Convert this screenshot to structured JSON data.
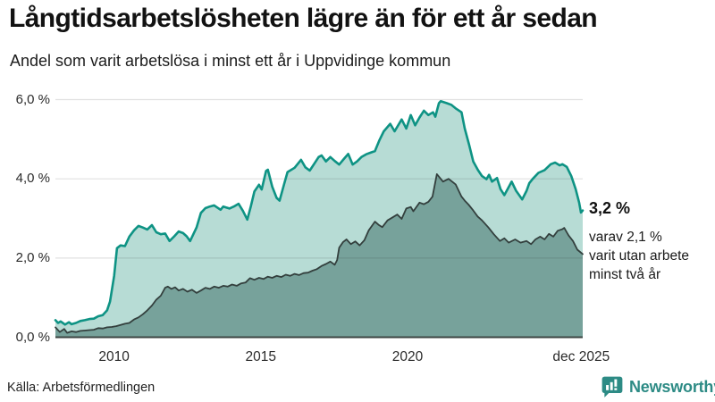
{
  "header": {
    "title": "Långtidsarbetslösheten lägre än för ett år sedan",
    "subtitle": "Andel som varit arbetslösa i minst ett år i Uppvidinge kommun"
  },
  "chart_data": {
    "type": "area",
    "title": "Långtidsarbetslösheten lägre än för ett år sedan",
    "x_unit": "decimal year, monthly series jan 2008 - dec 2025",
    "y_unit": "percent",
    "xlim": [
      2008.0,
      2026.1
    ],
    "ylim": [
      0,
      6.35
    ],
    "grid": "horizontal",
    "legend_position": "none",
    "yticks": [
      {
        "v": 0,
        "label": "0,0 %"
      },
      {
        "v": 2,
        "label": "2,0 %"
      },
      {
        "v": 4,
        "label": "4,0 %"
      },
      {
        "v": 6,
        "label": "6,0 %"
      }
    ],
    "xticks": [
      {
        "t": 2010.0,
        "label": "2010"
      },
      {
        "t": 2015.0,
        "label": "2015"
      },
      {
        "t": 2020.0,
        "label": "2020"
      },
      {
        "t": 2025.92,
        "label": "dec 2025"
      }
    ],
    "series": [
      {
        "name": "Andel som varit arbetslösa i minst ett år",
        "line_color": "#0e9384",
        "fill_color": "#b7dcd5",
        "end_value": 3.2,
        "points": [
          [
            2008.0,
            0.43
          ],
          [
            2008.09,
            0.36
          ],
          [
            2008.18,
            0.4
          ],
          [
            2008.33,
            0.32
          ],
          [
            2008.46,
            0.38
          ],
          [
            2008.55,
            0.33
          ],
          [
            2008.7,
            0.36
          ],
          [
            2008.85,
            0.41
          ],
          [
            2009.0,
            0.43
          ],
          [
            2009.16,
            0.46
          ],
          [
            2009.31,
            0.47
          ],
          [
            2009.46,
            0.53
          ],
          [
            2009.61,
            0.56
          ],
          [
            2009.76,
            0.68
          ],
          [
            2009.86,
            0.9
          ],
          [
            2010.0,
            1.55
          ],
          [
            2010.1,
            2.25
          ],
          [
            2010.22,
            2.32
          ],
          [
            2010.37,
            2.3
          ],
          [
            2010.52,
            2.54
          ],
          [
            2010.68,
            2.7
          ],
          [
            2010.83,
            2.81
          ],
          [
            2010.98,
            2.77
          ],
          [
            2011.13,
            2.72
          ],
          [
            2011.29,
            2.83
          ],
          [
            2011.44,
            2.65
          ],
          [
            2011.59,
            2.6
          ],
          [
            2011.74,
            2.62
          ],
          [
            2011.89,
            2.43
          ],
          [
            2012.05,
            2.55
          ],
          [
            2012.2,
            2.67
          ],
          [
            2012.35,
            2.63
          ],
          [
            2012.47,
            2.55
          ],
          [
            2012.59,
            2.43
          ],
          [
            2012.81,
            2.77
          ],
          [
            2012.96,
            3.14
          ],
          [
            2013.11,
            3.26
          ],
          [
            2013.26,
            3.3
          ],
          [
            2013.41,
            3.33
          ],
          [
            2013.63,
            3.22
          ],
          [
            2013.72,
            3.3
          ],
          [
            2013.93,
            3.25
          ],
          [
            2014.08,
            3.3
          ],
          [
            2014.24,
            3.37
          ],
          [
            2014.39,
            3.19
          ],
          [
            2014.54,
            2.97
          ],
          [
            2014.66,
            3.3
          ],
          [
            2014.78,
            3.68
          ],
          [
            2014.94,
            3.85
          ],
          [
            2015.03,
            3.73
          ],
          [
            2015.18,
            4.2
          ],
          [
            2015.24,
            4.23
          ],
          [
            2015.39,
            3.8
          ],
          [
            2015.54,
            3.52
          ],
          [
            2015.64,
            3.45
          ],
          [
            2015.79,
            3.85
          ],
          [
            2015.91,
            4.17
          ],
          [
            2016.15,
            4.28
          ],
          [
            2016.37,
            4.48
          ],
          [
            2016.52,
            4.29
          ],
          [
            2016.67,
            4.21
          ],
          [
            2016.82,
            4.38
          ],
          [
            2016.97,
            4.55
          ],
          [
            2017.07,
            4.59
          ],
          [
            2017.22,
            4.44
          ],
          [
            2017.37,
            4.55
          ],
          [
            2017.52,
            4.45
          ],
          [
            2017.67,
            4.36
          ],
          [
            2017.83,
            4.5
          ],
          [
            2017.98,
            4.63
          ],
          [
            2018.13,
            4.36
          ],
          [
            2018.28,
            4.44
          ],
          [
            2018.43,
            4.55
          ],
          [
            2018.59,
            4.62
          ],
          [
            2018.74,
            4.66
          ],
          [
            2018.89,
            4.7
          ],
          [
            2019.04,
            4.97
          ],
          [
            2019.19,
            5.2
          ],
          [
            2019.41,
            5.39
          ],
          [
            2019.56,
            5.2
          ],
          [
            2019.8,
            5.5
          ],
          [
            2019.96,
            5.27
          ],
          [
            2020.11,
            5.61
          ],
          [
            2020.26,
            5.35
          ],
          [
            2020.41,
            5.55
          ],
          [
            2020.56,
            5.72
          ],
          [
            2020.71,
            5.61
          ],
          [
            2020.87,
            5.68
          ],
          [
            2020.95,
            5.57
          ],
          [
            2021.07,
            5.91
          ],
          [
            2021.13,
            5.96
          ],
          [
            2021.34,
            5.91
          ],
          [
            2021.49,
            5.87
          ],
          [
            2021.64,
            5.78
          ],
          [
            2021.84,
            5.68
          ],
          [
            2021.95,
            5.27
          ],
          [
            2022.1,
            4.86
          ],
          [
            2022.24,
            4.44
          ],
          [
            2022.4,
            4.22
          ],
          [
            2022.54,
            4.07
          ],
          [
            2022.69,
            3.99
          ],
          [
            2022.78,
            4.1
          ],
          [
            2022.88,
            3.93
          ],
          [
            2023.05,
            4.02
          ],
          [
            2023.17,
            3.74
          ],
          [
            2023.3,
            3.59
          ],
          [
            2023.42,
            3.75
          ],
          [
            2023.55,
            3.93
          ],
          [
            2023.7,
            3.7
          ],
          [
            2023.91,
            3.48
          ],
          [
            2024.06,
            3.7
          ],
          [
            2024.15,
            3.89
          ],
          [
            2024.27,
            4.0
          ],
          [
            2024.46,
            4.15
          ],
          [
            2024.67,
            4.22
          ],
          [
            2024.88,
            4.37
          ],
          [
            2025.03,
            4.41
          ],
          [
            2025.19,
            4.34
          ],
          [
            2025.28,
            4.37
          ],
          [
            2025.43,
            4.3
          ],
          [
            2025.58,
            4.07
          ],
          [
            2025.73,
            3.74
          ],
          [
            2025.85,
            3.4
          ],
          [
            2025.91,
            3.15
          ],
          [
            2025.97,
            3.2
          ]
        ]
      },
      {
        "name": "varav utan arbete minst två år",
        "line_color": "#333f3d",
        "fill_color": "#77a29b",
        "end_value": 2.1,
        "points": [
          [
            2008.0,
            0.25
          ],
          [
            2008.15,
            0.13
          ],
          [
            2008.3,
            0.21
          ],
          [
            2008.4,
            0.11
          ],
          [
            2008.55,
            0.15
          ],
          [
            2008.7,
            0.13
          ],
          [
            2008.85,
            0.16
          ],
          [
            2009.0,
            0.17
          ],
          [
            2009.16,
            0.18
          ],
          [
            2009.31,
            0.19
          ],
          [
            2009.46,
            0.23
          ],
          [
            2009.61,
            0.22
          ],
          [
            2009.76,
            0.25
          ],
          [
            2009.92,
            0.26
          ],
          [
            2010.07,
            0.28
          ],
          [
            2010.22,
            0.31
          ],
          [
            2010.37,
            0.34
          ],
          [
            2010.52,
            0.36
          ],
          [
            2010.68,
            0.45
          ],
          [
            2010.83,
            0.5
          ],
          [
            2010.98,
            0.58
          ],
          [
            2011.13,
            0.68
          ],
          [
            2011.29,
            0.8
          ],
          [
            2011.44,
            0.95
          ],
          [
            2011.59,
            1.05
          ],
          [
            2011.74,
            1.25
          ],
          [
            2011.83,
            1.28
          ],
          [
            2011.95,
            1.22
          ],
          [
            2012.08,
            1.26
          ],
          [
            2012.2,
            1.18
          ],
          [
            2012.35,
            1.22
          ],
          [
            2012.5,
            1.15
          ],
          [
            2012.65,
            1.2
          ],
          [
            2012.81,
            1.12
          ],
          [
            2012.96,
            1.18
          ],
          [
            2013.11,
            1.25
          ],
          [
            2013.26,
            1.22
          ],
          [
            2013.41,
            1.28
          ],
          [
            2013.57,
            1.25
          ],
          [
            2013.72,
            1.3
          ],
          [
            2013.87,
            1.28
          ],
          [
            2014.02,
            1.33
          ],
          [
            2014.18,
            1.3
          ],
          [
            2014.33,
            1.36
          ],
          [
            2014.48,
            1.38
          ],
          [
            2014.63,
            1.49
          ],
          [
            2014.78,
            1.45
          ],
          [
            2014.94,
            1.5
          ],
          [
            2015.09,
            1.47
          ],
          [
            2015.24,
            1.53
          ],
          [
            2015.39,
            1.5
          ],
          [
            2015.54,
            1.55
          ],
          [
            2015.7,
            1.52
          ],
          [
            2015.85,
            1.58
          ],
          [
            2016.0,
            1.55
          ],
          [
            2016.15,
            1.6
          ],
          [
            2016.3,
            1.57
          ],
          [
            2016.46,
            1.62
          ],
          [
            2016.61,
            1.63
          ],
          [
            2016.76,
            1.68
          ],
          [
            2016.91,
            1.72
          ],
          [
            2017.07,
            1.8
          ],
          [
            2017.22,
            1.85
          ],
          [
            2017.37,
            1.91
          ],
          [
            2017.52,
            1.83
          ],
          [
            2017.6,
            1.95
          ],
          [
            2017.67,
            2.26
          ],
          [
            2017.8,
            2.4
          ],
          [
            2017.92,
            2.47
          ],
          [
            2018.07,
            2.35
          ],
          [
            2018.22,
            2.42
          ],
          [
            2018.37,
            2.32
          ],
          [
            2018.53,
            2.45
          ],
          [
            2018.68,
            2.7
          ],
          [
            2018.89,
            2.92
          ],
          [
            2019.01,
            2.84
          ],
          [
            2019.14,
            2.78
          ],
          [
            2019.32,
            2.95
          ],
          [
            2019.5,
            3.03
          ],
          [
            2019.65,
            3.1
          ],
          [
            2019.8,
            2.99
          ],
          [
            2019.96,
            3.25
          ],
          [
            2020.11,
            3.29
          ],
          [
            2020.2,
            3.18
          ],
          [
            2020.41,
            3.4
          ],
          [
            2020.56,
            3.36
          ],
          [
            2020.71,
            3.42
          ],
          [
            2020.85,
            3.55
          ],
          [
            2021.0,
            4.12
          ],
          [
            2021.21,
            3.93
          ],
          [
            2021.4,
            4.0
          ],
          [
            2021.64,
            3.86
          ],
          [
            2021.84,
            3.55
          ],
          [
            2021.95,
            3.45
          ],
          [
            2022.08,
            3.35
          ],
          [
            2022.24,
            3.2
          ],
          [
            2022.39,
            3.05
          ],
          [
            2022.54,
            2.95
          ],
          [
            2022.75,
            2.78
          ],
          [
            2022.94,
            2.6
          ],
          [
            2023.15,
            2.43
          ],
          [
            2023.3,
            2.5
          ],
          [
            2023.45,
            2.39
          ],
          [
            2023.67,
            2.47
          ],
          [
            2023.85,
            2.39
          ],
          [
            2024.06,
            2.43
          ],
          [
            2024.21,
            2.35
          ],
          [
            2024.36,
            2.47
          ],
          [
            2024.52,
            2.54
          ],
          [
            2024.67,
            2.47
          ],
          [
            2024.82,
            2.61
          ],
          [
            2024.97,
            2.54
          ],
          [
            2025.12,
            2.69
          ],
          [
            2025.28,
            2.73
          ],
          [
            2025.34,
            2.76
          ],
          [
            2025.49,
            2.57
          ],
          [
            2025.64,
            2.43
          ],
          [
            2025.79,
            2.21
          ],
          [
            2025.97,
            2.1
          ]
        ]
      }
    ],
    "annotations": {
      "endpoint_label": "3,2 %",
      "note_lines": [
        "varav 2,1 %",
        "varit utan arbete",
        "minst två år"
      ]
    },
    "axis_colors": {
      "gridline": "#d9d9d9",
      "baseline": "#3c4643"
    }
  },
  "footer": {
    "source": "Källa: Arbetsförmedlingen",
    "brand": "Newsworthy",
    "brand_color": "#2d8b85"
  }
}
